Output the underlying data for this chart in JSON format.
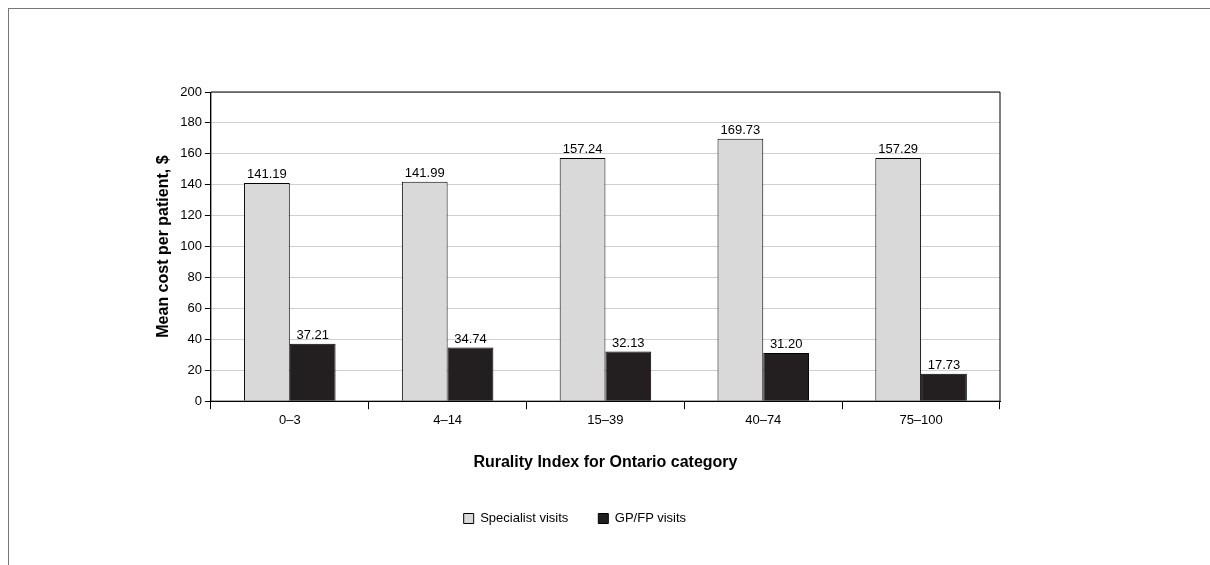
{
  "chart_data": {
    "type": "bar",
    "xlabel": "Rurality Index for Ontario category",
    "ylabel": "Mean cost per patient, $",
    "categories": [
      "0–3",
      "4–14",
      "15–39",
      "40–74",
      "75–100"
    ],
    "series": [
      {
        "name": "Specialist visits",
        "color": "#d9d9d9",
        "values": [
          141.19,
          141.99,
          157.24,
          169.73,
          157.29
        ],
        "value_labels": [
          "141.19",
          "141.99",
          "157.24",
          "169.73",
          "157.29"
        ]
      },
      {
        "name": "GP/FP visits",
        "color": "#231f20",
        "values": [
          37.21,
          34.74,
          32.13,
          31.2,
          17.73
        ],
        "value_labels": [
          "37.21",
          "34.74",
          "32.13",
          "31.20",
          "17.73"
        ]
      }
    ],
    "ylim": [
      0,
      200
    ],
    "yticks": [
      0,
      20,
      40,
      60,
      80,
      100,
      120,
      140,
      160,
      180,
      200
    ],
    "grid": "y",
    "legend": "bottom"
  }
}
